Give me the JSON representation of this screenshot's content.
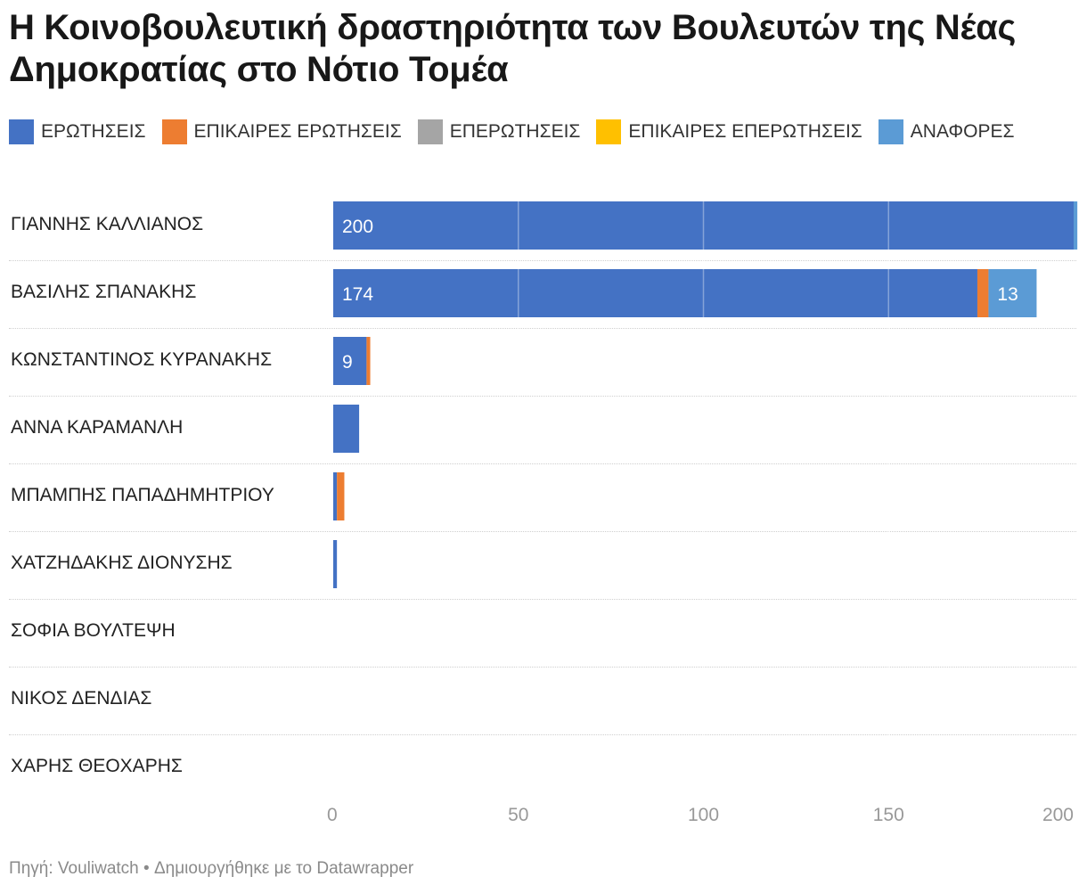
{
  "title": "Η Κοινοβουλευτική δραστηριότητα των Βουλευτών της Νέας Δημοκρατίας στο Νότιο Τομέα",
  "footer": "Πηγή: Vouliwatch • Δημιουργήθηκε με το Datawrapper",
  "chart_data": {
    "type": "bar",
    "orientation": "horizontal",
    "stacked": true,
    "title": "Η Κοινοβουλευτική δραστηριότητα των Βουλευτών της Νέας Δημοκρατίας στο Νότιο Τομέα",
    "xlabel": "",
    "ylabel": "",
    "xlim": [
      0,
      200
    ],
    "xticks": [
      "0",
      "50",
      "100",
      "150",
      "200"
    ],
    "grid": true,
    "legend_position": "top",
    "categories": [
      "ΓΙΑΝΝΗΣ ΚΑΛΛΙΑΝΟΣ",
      "ΒΑΣΙΛΗΣ ΣΠΑΝΑΚΗΣ",
      "ΚΩΝΣΤΑΝΤΙΝΟΣ ΚΥΡΑΝΑΚΗΣ",
      "ΑΝΝΑ ΚΑΡΑΜΑΝΛΗ",
      "ΜΠΑΜΠΗΣ ΠΑΠΑΔΗΜΗΤΡΙΟΥ",
      "ΧΑΤΖΗΔΑΚΗΣ ΔΙΟΝΥΣΗΣ",
      "ΣΟΦΙΑ ΒΟΥΛΤΕΨΗ",
      "ΝΙΚΟΣ ΔΕΝΔΙΑΣ",
      "ΧΑΡΗΣ ΘΕΟΧΑΡΗΣ"
    ],
    "series": [
      {
        "name": "ΕΡΩΤΗΣΕΙΣ",
        "color": "#4472c4",
        "values": [
          200,
          174,
          9,
          7,
          1,
          1,
          0,
          0,
          0
        ]
      },
      {
        "name": "ΕΠΙΚΑΙΡΕΣ ΕΡΩΤΗΣΕΙΣ",
        "color": "#ed7d31",
        "values": [
          0,
          3,
          1,
          0,
          2,
          0,
          0,
          0,
          0
        ]
      },
      {
        "name": "ΕΠΕΡΩΤΗΣΕΙΣ",
        "color": "#a5a5a5",
        "values": [
          0,
          0,
          0,
          0,
          0,
          0,
          0,
          0,
          0
        ]
      },
      {
        "name": "ΕΠΙΚΑΙΡΕΣ ΕΠΕΡΩΤΗΣΕΙΣ",
        "color": "#ffc000",
        "values": [
          0,
          0,
          0,
          0,
          0,
          0,
          0,
          0,
          0
        ]
      },
      {
        "name": "ΑΝΑΦΟΡΕΣ",
        "color": "#5b9bd5",
        "values": [
          1,
          13,
          0,
          0,
          0,
          0,
          0,
          0,
          0
        ]
      }
    ],
    "data_labels": [
      {
        "row": 0,
        "series": 0,
        "text": "200"
      },
      {
        "row": 1,
        "series": 0,
        "text": "174"
      },
      {
        "row": 1,
        "series": 4,
        "text": "13"
      },
      {
        "row": 2,
        "series": 0,
        "text": "9"
      }
    ]
  }
}
